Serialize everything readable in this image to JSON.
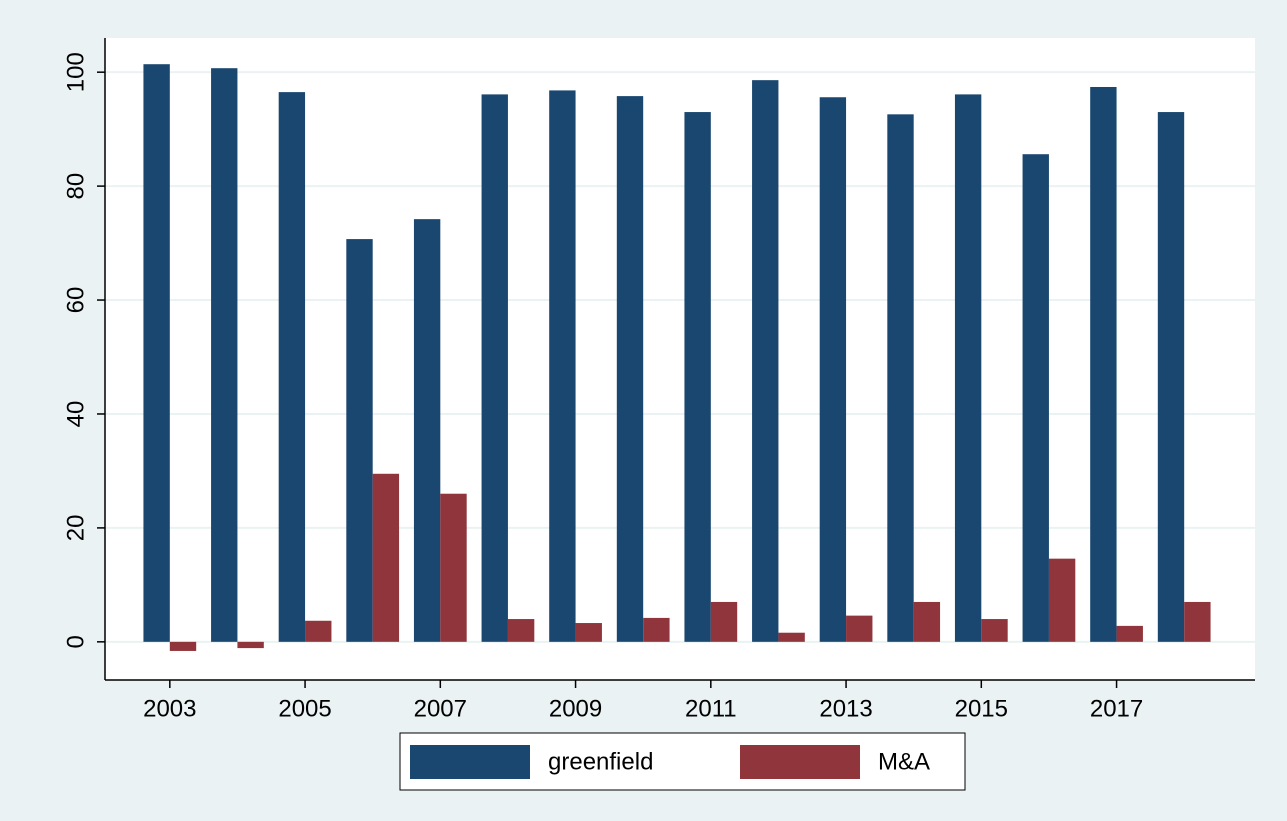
{
  "chart_data": {
    "type": "bar",
    "categories": [
      "2003",
      null,
      "2005",
      null,
      "2007",
      null,
      "2009",
      null,
      "2011",
      null,
      "2013",
      null,
      "2015",
      null,
      "2017",
      null
    ],
    "series": [
      {
        "name": "greenfield",
        "color": "#1a476f",
        "values": [
          101.4,
          100.7,
          96.5,
          70.7,
          74.2,
          96.1,
          96.8,
          95.8,
          93.0,
          98.6,
          95.6,
          92.6,
          96.1,
          85.6,
          97.4,
          93.0
        ]
      },
      {
        "name": "M&A",
        "color": "#90353b",
        "values": [
          -1.6,
          -1.1,
          3.7,
          29.5,
          26.0,
          4.0,
          3.3,
          4.2,
          7.0,
          1.6,
          4.6,
          7.0,
          4.0,
          14.6,
          2.8,
          7.0
        ]
      }
    ],
    "ylim": [
      -6.7,
      106
    ],
    "yticks": [
      0,
      20,
      40,
      60,
      80,
      100
    ],
    "grid": true,
    "legend": "bottom"
  }
}
